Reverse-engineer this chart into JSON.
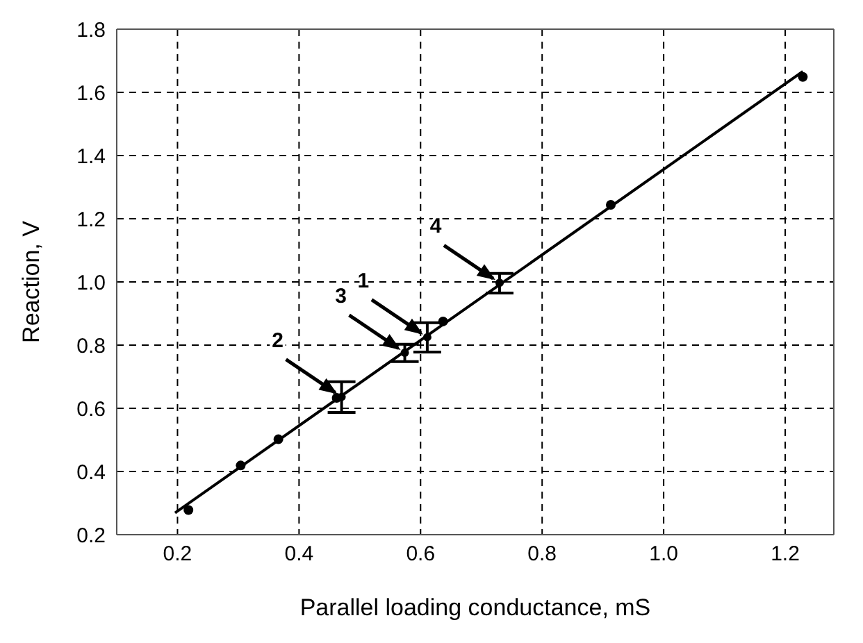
{
  "chart_data": {
    "type": "scatter",
    "xlabel": "Parallel loading conductance, mS",
    "ylabel": "Reaction, V",
    "xlim": [
      0.1,
      1.28
    ],
    "xticks": [
      0.2,
      0.4,
      0.6,
      0.8,
      {
        "value": 1,
        "label": "1.0"
      },
      1.2
    ],
    "ylim": [
      0.2,
      1.8
    ],
    "yticks": [
      0.2,
      0.4,
      0.6,
      0.8,
      {
        "value": 1,
        "label": "1.0"
      },
      1.2,
      1.4,
      1.6,
      1.8
    ],
    "grid": true,
    "legend": false,
    "series": [
      {
        "type": "scatter",
        "marker": "circle",
        "color": "#000000",
        "x": [
          0.218,
          0.304,
          0.366,
          0.462,
          0.637,
          0.913,
          1.229
        ],
        "values": [
          0.278,
          0.419,
          0.502,
          0.633,
          0.875,
          1.244,
          1.649
        ]
      },
      {
        "type": "scatter",
        "marker": "circle",
        "color": "#000000",
        "x": [
          0.611,
          0.47,
          0.574,
          0.73
        ],
        "values": [
          0.825,
          0.636,
          0.776,
          0.997
        ],
        "errors": [
          [
            0.778,
            0.871
          ],
          [
            0.587,
            0.684
          ],
          [
            0.748,
            0.803
          ],
          [
            0.965,
            1.027
          ]
        ]
      },
      {
        "type": "line",
        "marker": "none",
        "line_style": "solid",
        "color": "#000000",
        "x": [
          0.196,
          1.229
        ],
        "values": [
          0.269,
          1.666
        ]
      }
    ],
    "annotations": [
      {
        "text": "1",
        "x": 0.611,
        "y": 0.825
      },
      {
        "text": "2",
        "x": 0.47,
        "y": 0.636
      },
      {
        "text": "3",
        "x": 0.574,
        "y": 0.776
      },
      {
        "text": "4",
        "x": 0.73,
        "y": 0.997
      }
    ]
  }
}
